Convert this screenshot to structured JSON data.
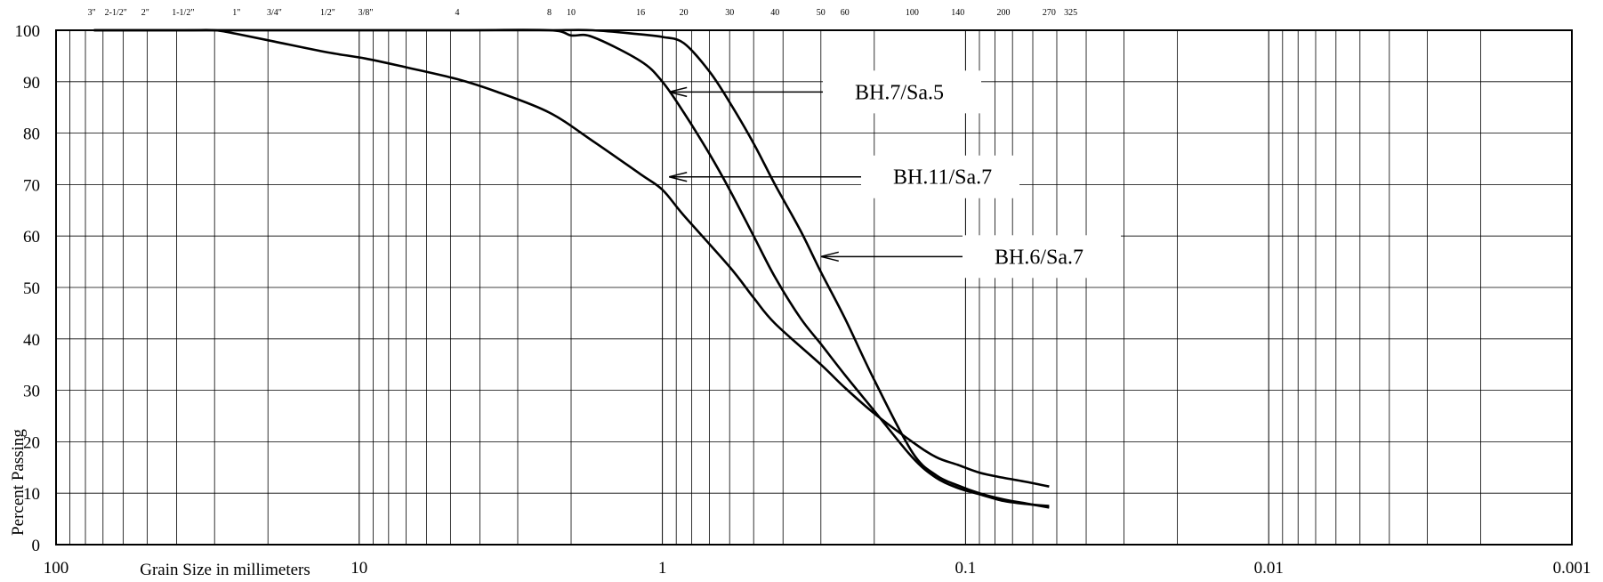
{
  "chart_data": {
    "type": "line",
    "title": "",
    "xlabel": "Grain Size in millimeters",
    "ylabel": "Percent Passing",
    "x_scale": "log",
    "x_reversed": true,
    "xlim": [
      100,
      0.001
    ],
    "ylim": [
      0,
      100
    ],
    "grid": true,
    "x_tick_labels": [
      "100",
      "10",
      "1",
      "0.1",
      "0.01",
      "0.001"
    ],
    "y_tick_labels": [
      "100",
      "90",
      "80",
      "70",
      "60",
      "50",
      "40",
      "30",
      "20",
      "10",
      "0"
    ],
    "sieve_labels": [
      {
        "label": "3\"",
        "size": 76.2
      },
      {
        "label": "2-1/2\"",
        "size": 63.5
      },
      {
        "label": "2\"",
        "size": 50.8
      },
      {
        "label": "1-1/2\"",
        "size": 38.1
      },
      {
        "label": "1\"",
        "size": 25.4
      },
      {
        "label": "3/4\"",
        "size": 19.05
      },
      {
        "label": "1/2\"",
        "size": 12.7
      },
      {
        "label": "3/8\"",
        "size": 9.525
      },
      {
        "label": "4",
        "size": 4.75
      },
      {
        "label": "8",
        "size": 2.36
      },
      {
        "label": "10",
        "size": 2.0
      },
      {
        "label": "16",
        "size": 1.18
      },
      {
        "label": "20",
        "size": 0.85
      },
      {
        "label": "30",
        "size": 0.6
      },
      {
        "label": "40",
        "size": 0.425
      },
      {
        "label": "50",
        "size": 0.3
      },
      {
        "label": "60",
        "size": 0.25
      },
      {
        "label": "100",
        "size": 0.15
      },
      {
        "label": "140",
        "size": 0.106
      },
      {
        "label": "200",
        "size": 0.075
      },
      {
        "label": "270",
        "size": 0.053
      },
      {
        "label": "325",
        "size": 0.045
      }
    ],
    "series": [
      {
        "name": "BH.7/Sa.5",
        "points": [
          [
            75,
            100
          ],
          [
            25.4,
            100
          ],
          [
            12.7,
            100
          ],
          [
            4.75,
            100
          ],
          [
            2.36,
            100
          ],
          [
            1.7,
            100
          ],
          [
            1.18,
            99.2
          ],
          [
            1.0,
            98.7
          ],
          [
            0.85,
            97.5
          ],
          [
            0.7,
            92
          ],
          [
            0.6,
            86
          ],
          [
            0.5,
            78
          ],
          [
            0.425,
            70
          ],
          [
            0.35,
            61
          ],
          [
            0.3,
            53
          ],
          [
            0.25,
            44
          ],
          [
            0.2,
            32
          ],
          [
            0.15,
            18
          ],
          [
            0.125,
            13.5
          ],
          [
            0.106,
            11.5
          ],
          [
            0.09,
            10
          ],
          [
            0.075,
            8.8
          ],
          [
            0.063,
            8
          ],
          [
            0.053,
            7.2
          ]
        ]
      },
      {
        "name": "BH.11/Sa.7",
        "points": [
          [
            75,
            100
          ],
          [
            25.4,
            100
          ],
          [
            12.7,
            100
          ],
          [
            4.75,
            100
          ],
          [
            2.36,
            100
          ],
          [
            2.0,
            99
          ],
          [
            1.7,
            98.7
          ],
          [
            1.18,
            94
          ],
          [
            1.0,
            90
          ],
          [
            0.85,
            84
          ],
          [
            0.7,
            76
          ],
          [
            0.6,
            69
          ],
          [
            0.5,
            60
          ],
          [
            0.425,
            52
          ],
          [
            0.35,
            44
          ],
          [
            0.3,
            39
          ],
          [
            0.25,
            33
          ],
          [
            0.2,
            26
          ],
          [
            0.15,
            17
          ],
          [
            0.125,
            13
          ],
          [
            0.106,
            11
          ],
          [
            0.09,
            9.8
          ],
          [
            0.075,
            8.5
          ],
          [
            0.063,
            7.9
          ],
          [
            0.053,
            7.5
          ]
        ]
      },
      {
        "name": "BH.6/Sa.7",
        "points": [
          [
            75,
            100
          ],
          [
            38.1,
            100
          ],
          [
            30,
            100
          ],
          [
            25.4,
            99.3
          ],
          [
            19.05,
            97.8
          ],
          [
            12.7,
            95.7
          ],
          [
            9.525,
            94.5
          ],
          [
            7,
            92.8
          ],
          [
            4.75,
            90.5
          ],
          [
            3.5,
            88
          ],
          [
            2.36,
            84
          ],
          [
            1.7,
            78.5
          ],
          [
            1.18,
            72
          ],
          [
            1.0,
            69
          ],
          [
            0.85,
            64
          ],
          [
            0.6,
            54
          ],
          [
            0.5,
            48
          ],
          [
            0.425,
            43
          ],
          [
            0.3,
            35
          ],
          [
            0.25,
            30.5
          ],
          [
            0.2,
            25.5
          ],
          [
            0.15,
            20
          ],
          [
            0.125,
            17
          ],
          [
            0.106,
            15.5
          ],
          [
            0.09,
            14
          ],
          [
            0.075,
            13
          ],
          [
            0.063,
            12.2
          ],
          [
            0.053,
            11.3
          ]
        ]
      }
    ],
    "annotations": [
      {
        "text": "BH.7/Sa.5",
        "series": "BH.7/Sa.5",
        "arrow_x": 0.95,
        "arrow_y": 88
      },
      {
        "text": "BH.11/Sa.7",
        "series": "BH.11/Sa.7",
        "arrow_x": 0.95,
        "arrow_y": 71.5
      },
      {
        "text": "BH.6/Sa.7",
        "series": "BH.6/Sa.7",
        "arrow_x": 0.3,
        "arrow_y": 56
      }
    ]
  }
}
